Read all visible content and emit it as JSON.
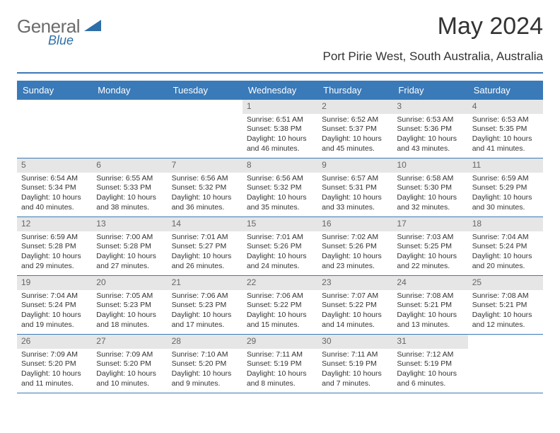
{
  "logo": {
    "text": "General",
    "sub": "Blue"
  },
  "title": "May 2024",
  "subtitle": "Port Pirie West, South Australia, Australia",
  "weekdays": [
    "Sunday",
    "Monday",
    "Tuesday",
    "Wednesday",
    "Thursday",
    "Friday",
    "Saturday"
  ],
  "colors": {
    "accent": "#3a7ab8",
    "daybar": "#e6e6e6",
    "logo_gray": "#6b6b6b",
    "logo_blue": "#2e6fa8",
    "text": "#333333"
  },
  "layout": {
    "rows": 5,
    "cols": 7
  },
  "days": [
    {
      "day": "",
      "sunrise": "",
      "sunset": "",
      "daylight": ""
    },
    {
      "day": "",
      "sunrise": "",
      "sunset": "",
      "daylight": ""
    },
    {
      "day": "",
      "sunrise": "",
      "sunset": "",
      "daylight": ""
    },
    {
      "day": "1",
      "sunrise": "Sunrise: 6:51 AM",
      "sunset": "Sunset: 5:38 PM",
      "daylight": "Daylight: 10 hours and 46 minutes."
    },
    {
      "day": "2",
      "sunrise": "Sunrise: 6:52 AM",
      "sunset": "Sunset: 5:37 PM",
      "daylight": "Daylight: 10 hours and 45 minutes."
    },
    {
      "day": "3",
      "sunrise": "Sunrise: 6:53 AM",
      "sunset": "Sunset: 5:36 PM",
      "daylight": "Daylight: 10 hours and 43 minutes."
    },
    {
      "day": "4",
      "sunrise": "Sunrise: 6:53 AM",
      "sunset": "Sunset: 5:35 PM",
      "daylight": "Daylight: 10 hours and 41 minutes."
    },
    {
      "day": "5",
      "sunrise": "Sunrise: 6:54 AM",
      "sunset": "Sunset: 5:34 PM",
      "daylight": "Daylight: 10 hours and 40 minutes."
    },
    {
      "day": "6",
      "sunrise": "Sunrise: 6:55 AM",
      "sunset": "Sunset: 5:33 PM",
      "daylight": "Daylight: 10 hours and 38 minutes."
    },
    {
      "day": "7",
      "sunrise": "Sunrise: 6:56 AM",
      "sunset": "Sunset: 5:32 PM",
      "daylight": "Daylight: 10 hours and 36 minutes."
    },
    {
      "day": "8",
      "sunrise": "Sunrise: 6:56 AM",
      "sunset": "Sunset: 5:32 PM",
      "daylight": "Daylight: 10 hours and 35 minutes."
    },
    {
      "day": "9",
      "sunrise": "Sunrise: 6:57 AM",
      "sunset": "Sunset: 5:31 PM",
      "daylight": "Daylight: 10 hours and 33 minutes."
    },
    {
      "day": "10",
      "sunrise": "Sunrise: 6:58 AM",
      "sunset": "Sunset: 5:30 PM",
      "daylight": "Daylight: 10 hours and 32 minutes."
    },
    {
      "day": "11",
      "sunrise": "Sunrise: 6:59 AM",
      "sunset": "Sunset: 5:29 PM",
      "daylight": "Daylight: 10 hours and 30 minutes."
    },
    {
      "day": "12",
      "sunrise": "Sunrise: 6:59 AM",
      "sunset": "Sunset: 5:28 PM",
      "daylight": "Daylight: 10 hours and 29 minutes."
    },
    {
      "day": "13",
      "sunrise": "Sunrise: 7:00 AM",
      "sunset": "Sunset: 5:28 PM",
      "daylight": "Daylight: 10 hours and 27 minutes."
    },
    {
      "day": "14",
      "sunrise": "Sunrise: 7:01 AM",
      "sunset": "Sunset: 5:27 PM",
      "daylight": "Daylight: 10 hours and 26 minutes."
    },
    {
      "day": "15",
      "sunrise": "Sunrise: 7:01 AM",
      "sunset": "Sunset: 5:26 PM",
      "daylight": "Daylight: 10 hours and 24 minutes."
    },
    {
      "day": "16",
      "sunrise": "Sunrise: 7:02 AM",
      "sunset": "Sunset: 5:26 PM",
      "daylight": "Daylight: 10 hours and 23 minutes."
    },
    {
      "day": "17",
      "sunrise": "Sunrise: 7:03 AM",
      "sunset": "Sunset: 5:25 PM",
      "daylight": "Daylight: 10 hours and 22 minutes."
    },
    {
      "day": "18",
      "sunrise": "Sunrise: 7:04 AM",
      "sunset": "Sunset: 5:24 PM",
      "daylight": "Daylight: 10 hours and 20 minutes."
    },
    {
      "day": "19",
      "sunrise": "Sunrise: 7:04 AM",
      "sunset": "Sunset: 5:24 PM",
      "daylight": "Daylight: 10 hours and 19 minutes."
    },
    {
      "day": "20",
      "sunrise": "Sunrise: 7:05 AM",
      "sunset": "Sunset: 5:23 PM",
      "daylight": "Daylight: 10 hours and 18 minutes."
    },
    {
      "day": "21",
      "sunrise": "Sunrise: 7:06 AM",
      "sunset": "Sunset: 5:23 PM",
      "daylight": "Daylight: 10 hours and 17 minutes."
    },
    {
      "day": "22",
      "sunrise": "Sunrise: 7:06 AM",
      "sunset": "Sunset: 5:22 PM",
      "daylight": "Daylight: 10 hours and 15 minutes."
    },
    {
      "day": "23",
      "sunrise": "Sunrise: 7:07 AM",
      "sunset": "Sunset: 5:22 PM",
      "daylight": "Daylight: 10 hours and 14 minutes."
    },
    {
      "day": "24",
      "sunrise": "Sunrise: 7:08 AM",
      "sunset": "Sunset: 5:21 PM",
      "daylight": "Daylight: 10 hours and 13 minutes."
    },
    {
      "day": "25",
      "sunrise": "Sunrise: 7:08 AM",
      "sunset": "Sunset: 5:21 PM",
      "daylight": "Daylight: 10 hours and 12 minutes."
    },
    {
      "day": "26",
      "sunrise": "Sunrise: 7:09 AM",
      "sunset": "Sunset: 5:20 PM",
      "daylight": "Daylight: 10 hours and 11 minutes."
    },
    {
      "day": "27",
      "sunrise": "Sunrise: 7:09 AM",
      "sunset": "Sunset: 5:20 PM",
      "daylight": "Daylight: 10 hours and 10 minutes."
    },
    {
      "day": "28",
      "sunrise": "Sunrise: 7:10 AM",
      "sunset": "Sunset: 5:20 PM",
      "daylight": "Daylight: 10 hours and 9 minutes."
    },
    {
      "day": "29",
      "sunrise": "Sunrise: 7:11 AM",
      "sunset": "Sunset: 5:19 PM",
      "daylight": "Daylight: 10 hours and 8 minutes."
    },
    {
      "day": "30",
      "sunrise": "Sunrise: 7:11 AM",
      "sunset": "Sunset: 5:19 PM",
      "daylight": "Daylight: 10 hours and 7 minutes."
    },
    {
      "day": "31",
      "sunrise": "Sunrise: 7:12 AM",
      "sunset": "Sunset: 5:19 PM",
      "daylight": "Daylight: 10 hours and 6 minutes."
    },
    {
      "day": "",
      "sunrise": "",
      "sunset": "",
      "daylight": ""
    }
  ]
}
